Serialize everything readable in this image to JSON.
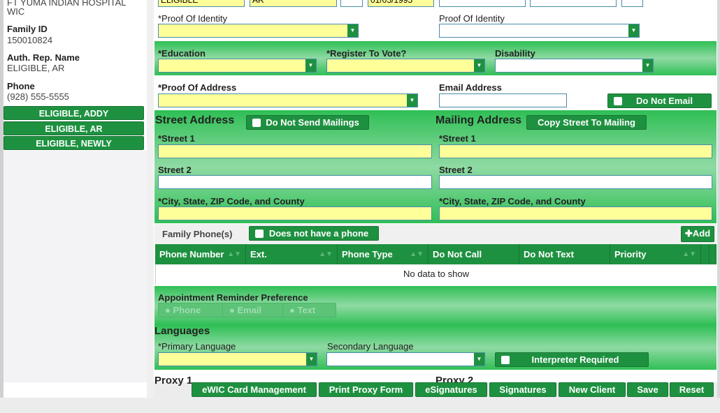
{
  "sidebar": {
    "clinic": "FT YUMA INDIAN HOSPITAL",
    "program": "WIC",
    "family_id_label": "Family ID",
    "family_id": "150010824",
    "auth_rep_label": "Auth. Rep. Name",
    "auth_rep": "ELIGIBLE, AR",
    "phone_label": "Phone",
    "phone": "(928) 555-5555",
    "members": [
      "ELIGIBLE, ADDY",
      "ELIGIBLE, AR",
      "ELIGIBLE, NEWLY"
    ]
  },
  "top_row": {
    "last_name": "ELIGIBLE",
    "first_name": "AR",
    "dob": "01/05/1995"
  },
  "identity": {
    "label1": "*Proof Of Identity",
    "label2": "Proof Of Identity"
  },
  "demo": {
    "education": "*Education",
    "register": "*Register To Vote?",
    "disability": "Disability"
  },
  "address": {
    "proof_label": "*Proof Of Address",
    "email_label": "Email Address",
    "do_not_email": "Do Not Email",
    "street_title": "Street Address",
    "do_not_send": "Do Not Send Mailings",
    "mailing_title": "Mailing Address",
    "copy": "Copy Street To Mailing",
    "street1": "*Street 1",
    "street2": "Street 2",
    "city": "*City, State, ZIP Code, and County"
  },
  "phones": {
    "title": "Family Phone(s)",
    "no_phone": "Does not have a phone",
    "add": "Add",
    "columns": [
      "Phone Number",
      "Ext.",
      "Phone Type",
      "Do Not Call",
      "Do Not Text",
      "Priority"
    ],
    "empty": "No data to show"
  },
  "reminder": {
    "label": "Appointment Reminder Preference",
    "options": [
      "Phone",
      "Email",
      "Text"
    ]
  },
  "languages": {
    "title": "Languages",
    "primary": "*Primary Language",
    "secondary": "Secondary Language",
    "interpreter": "Interpreter Required"
  },
  "proxy": {
    "p1": "Proxy 1",
    "p2": "Proxy 2"
  },
  "footer": [
    "eWIC Card Management",
    "Print Proxy Form",
    "eSignatures",
    "Signatures",
    "New Client",
    "Save",
    "Reset"
  ],
  "colors": {
    "green": "#1e9140",
    "required": "#ffff9a"
  }
}
